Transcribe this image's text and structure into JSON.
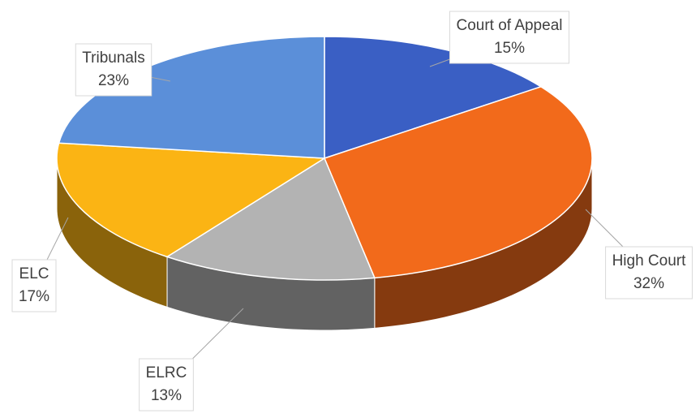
{
  "chart_data": {
    "type": "pie",
    "categories": [
      "Court of Appeal",
      "High Court",
      "ELRC",
      "ELC",
      "Tribunals"
    ],
    "values": [
      15,
      32,
      13,
      17,
      23
    ],
    "value_labels": [
      "15%",
      "32%",
      "13%",
      "17%",
      "23%"
    ],
    "colors": [
      "#3a5fc4",
      "#f26a1b",
      "#b3b3b3",
      "#fbb414",
      "#5b8fd9"
    ]
  }
}
